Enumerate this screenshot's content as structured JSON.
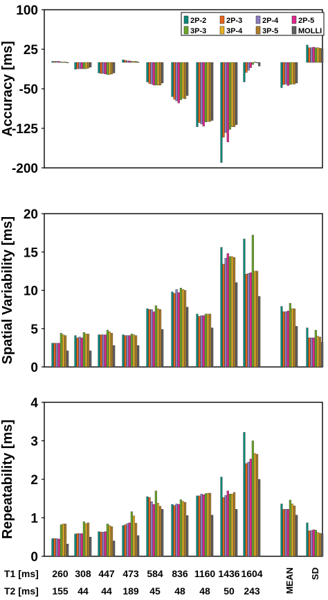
{
  "figure": {
    "legend_entries": [
      "2P-2",
      "2P-3",
      "2P-4",
      "2P-5",
      "3P-3",
      "3P-4",
      "3P-5",
      "MOLLI"
    ],
    "series_colors": [
      "#0a8a78",
      "#e8641a",
      "#8c7dc0",
      "#e0288e",
      "#6aa82a",
      "#e8b020",
      "#b07d2a",
      "#5e5e5e"
    ],
    "row_labels": [
      "T1 [ms]",
      "T2 [ms]"
    ],
    "t1_values": [
      "260",
      "308",
      "447",
      "473",
      "584",
      "836",
      "1160",
      "1436",
      "1604"
    ],
    "t2_values": [
      "155",
      "44",
      "44",
      "189",
      "45",
      "48",
      "48",
      "50",
      "243"
    ],
    "summary_labels": [
      "MEAN",
      "SD"
    ]
  },
  "chart_data": [
    {
      "type": "bar",
      "ylabel": "Accuracy [ms]",
      "ylim": [
        -200,
        100
      ],
      "yticks": [
        100,
        25,
        -50,
        -125,
        -200
      ],
      "grid": false,
      "legend": "top-right",
      "categories": [
        "260",
        "308",
        "447",
        "473",
        "584",
        "836",
        "1160",
        "1436",
        "1604",
        "MEAN",
        "SD"
      ],
      "series": [
        {
          "name": "2P-2",
          "values": [
            2,
            -13,
            -20,
            5,
            -37,
            -65,
            -122,
            -190,
            -37,
            -48,
            33
          ]
        },
        {
          "name": "2P-3",
          "values": [
            2,
            -12,
            -21,
            4,
            -40,
            -70,
            -114,
            -142,
            -19,
            -42,
            28
          ]
        },
        {
          "name": "2P-4",
          "values": [
            2,
            -12,
            -21,
            3,
            -41,
            -73,
            -117,
            -133,
            -15,
            -41,
            28
          ]
        },
        {
          "name": "2P-5",
          "values": [
            2,
            -12,
            -22,
            3,
            -43,
            -77,
            -121,
            -151,
            -10,
            -44,
            29
          ]
        },
        {
          "name": "3P-3",
          "values": [
            1,
            -12,
            -23,
            2,
            -43,
            -71,
            -113,
            -127,
            -4,
            -42,
            28
          ]
        },
        {
          "name": "3P-4",
          "values": [
            1,
            -12,
            -23,
            2,
            -43,
            -68,
            -112,
            -122,
            1,
            -41,
            28
          ]
        },
        {
          "name": "3P-5",
          "values": [
            1,
            -11,
            -22,
            2,
            -43,
            -69,
            -112,
            -122,
            0,
            -41,
            27
          ]
        },
        {
          "name": "MOLLI",
          "values": [
            0,
            -9,
            -20,
            1,
            -39,
            -63,
            -110,
            -118,
            -7,
            -39,
            26
          ]
        }
      ]
    },
    {
      "type": "bar",
      "ylabel": "Spatial Variability [ms]",
      "ylim": [
        0,
        20
      ],
      "yticks": [
        0,
        5,
        10,
        15,
        20
      ],
      "grid": false,
      "categories": [
        "260",
        "308",
        "447",
        "473",
        "584",
        "836",
        "1160",
        "1436",
        "1604",
        "MEAN",
        "SD"
      ],
      "series": [
        {
          "name": "2P-2",
          "values": [
            3.1,
            4.1,
            4.2,
            4.2,
            7.6,
            9.8,
            6.9,
            15.6,
            16.7,
            7.9,
            5.1
          ]
        },
        {
          "name": "2P-3",
          "values": [
            3.1,
            3.8,
            4.2,
            4.1,
            7.5,
            9.6,
            6.6,
            13.4,
            12.1,
            7.2,
            3.8
          ]
        },
        {
          "name": "2P-4",
          "values": [
            3.1,
            3.9,
            4.2,
            4.1,
            7.5,
            10.1,
            6.7,
            14.2,
            12.2,
            7.2,
            3.8
          ]
        },
        {
          "name": "2P-5",
          "values": [
            3.1,
            3.8,
            4.2,
            4.1,
            7.2,
            9.7,
            6.7,
            14.8,
            12.3,
            7.3,
            3.8
          ]
        },
        {
          "name": "3P-3",
          "values": [
            4.4,
            4.5,
            4.8,
            4.3,
            8.0,
            10.3,
            6.9,
            14.4,
            17.2,
            8.3,
            4.8
          ]
        },
        {
          "name": "3P-4",
          "values": [
            4.2,
            4.3,
            4.6,
            4.2,
            7.6,
            10.1,
            6.9,
            14.4,
            12.5,
            7.6,
            4.0
          ]
        },
        {
          "name": "3P-5",
          "values": [
            4.1,
            4.3,
            4.4,
            4.1,
            7.5,
            10.0,
            6.9,
            14.3,
            12.5,
            7.6,
            3.9
          ]
        },
        {
          "name": "MOLLI",
          "values": [
            2.1,
            2.1,
            2.8,
            2.8,
            4.9,
            7.8,
            5.1,
            11.0,
            9.2,
            5.3,
            3.2
          ]
        }
      ]
    },
    {
      "type": "bar",
      "ylabel": "Repeatability [ms]",
      "ylim": [
        0,
        4
      ],
      "yticks": [
        0,
        1,
        2,
        3,
        4
      ],
      "grid": false,
      "categories": [
        "260",
        "308",
        "447",
        "473",
        "584",
        "836",
        "1160",
        "1436",
        "1604",
        "MEAN",
        "SD"
      ],
      "series": [
        {
          "name": "2P-2",
          "values": [
            0.46,
            0.58,
            0.64,
            0.8,
            1.55,
            1.35,
            1.57,
            2.06,
            3.22,
            1.36,
            0.87
          ]
        },
        {
          "name": "2P-3",
          "values": [
            0.46,
            0.59,
            0.63,
            0.82,
            1.53,
            1.32,
            1.57,
            1.53,
            2.41,
            1.22,
            0.66
          ]
        },
        {
          "name": "2P-4",
          "values": [
            0.46,
            0.59,
            0.63,
            0.85,
            1.42,
            1.36,
            1.62,
            1.58,
            2.45,
            1.22,
            0.67
          ]
        },
        {
          "name": "2P-5",
          "values": [
            0.45,
            0.59,
            0.64,
            0.87,
            1.35,
            1.35,
            1.6,
            1.7,
            2.53,
            1.22,
            0.69
          ]
        },
        {
          "name": "3P-3",
          "values": [
            0.82,
            0.9,
            0.84,
            1.16,
            1.7,
            1.47,
            1.63,
            1.62,
            3.0,
            1.46,
            0.68
          ]
        },
        {
          "name": "3P-4",
          "values": [
            0.84,
            0.85,
            0.8,
            1.05,
            1.38,
            1.43,
            1.64,
            1.62,
            2.67,
            1.36,
            0.62
          ]
        },
        {
          "name": "3P-5",
          "values": [
            0.84,
            0.87,
            0.77,
            0.86,
            1.3,
            1.4,
            1.64,
            1.66,
            2.65,
            1.31,
            0.6
          ]
        },
        {
          "name": "MOLLI",
          "values": [
            0.32,
            0.5,
            0.4,
            0.54,
            1.22,
            1.06,
            1.07,
            1.22,
            2.0,
            1.07,
            0.58
          ]
        }
      ]
    }
  ]
}
